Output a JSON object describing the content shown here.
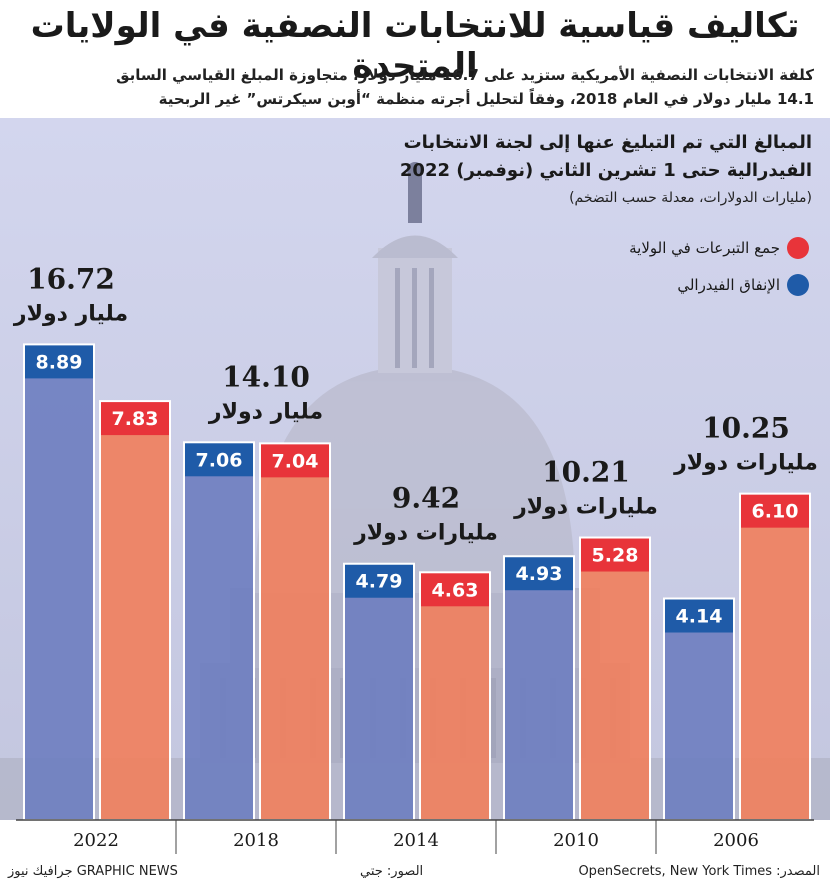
{
  "title": "تكاليف قياسية للانتخابات النصفية في الولايات المتحدة",
  "subtitle_line1": "كلفة الانتخابات النصفية الأمريكية ستزيد على 16.7 مليار دولار، متجاوزة المبلغ القياسي السابق",
  "subtitle_line2": "14.1 مليار دولار في العام 2018، وفقاً لتحليل أجرته منظمة “أوبن سيكرتس” غير الربحية",
  "chart_data": {
    "type": "bar",
    "title_line1": "المبالغ التي تم التبليغ عنها إلى لجنة الانتخابات",
    "title_line2": "الفيدرالية حتى 1 تشرين الثاني (نوفمبر) 2022",
    "units": "(مليارات الدولارات، معدلة حسب التضخم)",
    "categories": [
      "2022",
      "2018",
      "2014",
      "2010",
      "2006"
    ],
    "series": [
      {
        "name": "الإنفاق الفيدرالي",
        "color": "#1f5ba8",
        "values": [
          8.89,
          7.06,
          4.79,
          4.93,
          4.14
        ]
      },
      {
        "name": "جمع التبرعات في الولاية",
        "color": "#e8343a",
        "values": [
          7.83,
          7.04,
          4.63,
          5.28,
          6.1
        ]
      }
    ],
    "totals": [
      "16.72",
      "14.10",
      "9.42",
      "10.21",
      "10.25"
    ],
    "total_units": [
      "مليار دولار",
      "مليار دولار",
      "مليارات دولار",
      "مليارات دولار",
      "مليارات دولار"
    ],
    "value_labels_federal": [
      "8.89",
      "7.06",
      "4.79",
      "4.93",
      "4.14"
    ],
    "value_labels_state": [
      "7.83",
      "7.04",
      "4.63",
      "5.28",
      "6.10"
    ],
    "ylim": [
      0,
      10
    ],
    "legend_position": "top-right",
    "colors": {
      "federal": "#1f5ba8",
      "state": "#e8343a",
      "federal_fill": "#6f7fc0",
      "state_fill": "#f0805e"
    }
  },
  "footer": {
    "source": "المصدر: OpenSecrets, New York Times",
    "photo": "الصور: جتي",
    "credit": "GRAPHIC NEWS جرافيك نيوز"
  }
}
